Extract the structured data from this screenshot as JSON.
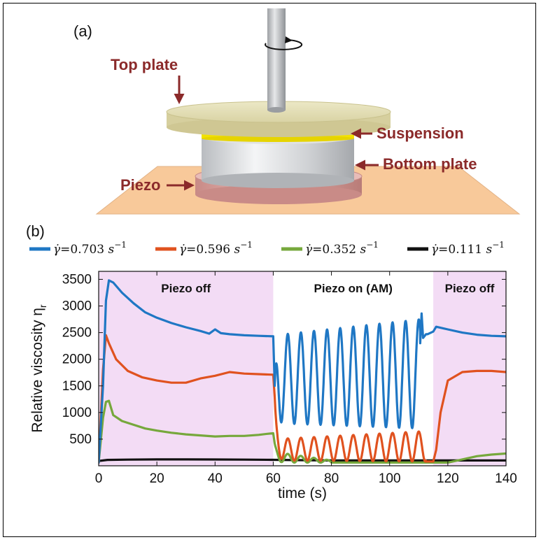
{
  "panel_a": {
    "label": "(a)",
    "callouts": {
      "top_plate": "Top plate",
      "suspension": "Suspension",
      "bottom_plate": "Bottom plate",
      "piezo": "Piezo"
    }
  },
  "panel_b": {
    "label": "(b)"
  },
  "colors": {
    "series": [
      "#1f77c4",
      "#e0521f",
      "#76a83c",
      "#111111"
    ],
    "shade": "#f3dcf5",
    "callout": "#8b2a2a"
  },
  "chart_data": {
    "type": "line",
    "xlabel": "time (s)",
    "ylabel": "Relative viscosity η",
    "ylabel_sub": "r",
    "xlim": [
      0,
      140
    ],
    "ylim": [
      0,
      3650
    ],
    "xticks": [
      0,
      20,
      40,
      60,
      80,
      100,
      120,
      140
    ],
    "yticks": [
      500,
      1000,
      1500,
      2000,
      2500,
      3000,
      3500
    ],
    "grid": false,
    "legend_position": "top",
    "regions": [
      {
        "label": "Piezo off",
        "x_start": 0,
        "x_end": 60,
        "shaded": true
      },
      {
        "label": "Piezo on (AM)",
        "x_start": 60,
        "x_end": 115,
        "shaded": false
      },
      {
        "label": "Piezo off",
        "x_start": 115,
        "x_end": 140,
        "shaded": true
      }
    ],
    "series": [
      {
        "name": "γ̇=0.703 s⁻¹",
        "name_parts": {
          "var": "γ̇",
          "val": "=0.703",
          "unit": "s",
          "exp": "−1"
        },
        "off1": {
          "x": [
            0,
            1.5,
            2.5,
            3.5,
            5,
            8,
            12,
            16,
            20,
            25,
            30,
            35,
            38,
            40,
            42,
            45,
            50,
            55,
            60
          ],
          "y": [
            60,
            1500,
            3100,
            3480,
            3440,
            3250,
            3050,
            2880,
            2780,
            2680,
            2600,
            2530,
            2480,
            2560,
            2490,
            2470,
            2450,
            2440,
            2430
          ]
        },
        "am": {
          "x_start": 60.5,
          "x_end": 110.5,
          "period": 4.5,
          "y_start": 1500,
          "peak": [
            2450,
            2750
          ],
          "trough": [
            800,
            700
          ]
        },
        "spike": {
          "x": [
            110.5,
            111.0,
            111.5,
            112.5
          ],
          "y": [
            2300,
            2860,
            2400,
            2470
          ]
        },
        "off2": {
          "x": [
            113,
            115,
            116,
            120,
            125,
            130,
            135,
            140
          ],
          "y": [
            2470,
            2520,
            2610,
            2560,
            2500,
            2460,
            2440,
            2430
          ]
        }
      },
      {
        "name": "γ̇=0.596 s⁻¹",
        "name_parts": {
          "var": "γ̇",
          "val": "=0.596",
          "unit": "s",
          "exp": "−1"
        },
        "off1": {
          "x": [
            0,
            1.5,
            2.5,
            3.5,
            6,
            10,
            15,
            20,
            25,
            30,
            35,
            40,
            45,
            50,
            55,
            60
          ],
          "y": [
            60,
            1800,
            2450,
            2300,
            2000,
            1780,
            1660,
            1600,
            1560,
            1560,
            1640,
            1690,
            1760,
            1730,
            1720,
            1710
          ]
        },
        "am": {
          "x_start": 60.5,
          "x_end": 112.5,
          "period": 4.5,
          "y_start": 1300,
          "peak": [
            500,
            650
          ],
          "trough": [
            100,
            80
          ]
        },
        "off2": {
          "x": [
            112.5,
            115,
            116,
            117.5,
            120,
            125,
            130,
            135,
            140
          ],
          "y": [
            80,
            80,
            300,
            1000,
            1600,
            1760,
            1780,
            1780,
            1760
          ]
        }
      },
      {
        "name": "γ̇=0.352 s⁻¹",
        "name_parts": {
          "var": "γ̇",
          "val": "=0.352",
          "unit": "s",
          "exp": "−1"
        },
        "off1": {
          "x": [
            0,
            1.5,
            2.5,
            3.5,
            5,
            8,
            12,
            16,
            20,
            25,
            30,
            35,
            40,
            45,
            50,
            55,
            58,
            60
          ],
          "y": [
            60,
            900,
            1200,
            1220,
            950,
            840,
            770,
            700,
            660,
            620,
            590,
            570,
            550,
            560,
            560,
            580,
            600,
            610
          ]
        },
        "am": {
          "x_start": 60.5,
          "x_end": 80,
          "period": 4.5,
          "y_start": 420,
          "peak": [
            260,
            100
          ],
          "trough": [
            60,
            60
          ]
        },
        "off2": {
          "x": [
            80,
            90,
            100,
            110,
            120,
            125,
            130,
            135,
            140
          ],
          "y": [
            60,
            60,
            60,
            60,
            60,
            120,
            180,
            210,
            230
          ]
        }
      },
      {
        "name": "γ̇=0.111 s⁻¹",
        "name_parts": {
          "var": "γ̇",
          "val": "=0.111",
          "unit": "s",
          "exp": "−1"
        },
        "off1": {
          "x": [
            0,
            3,
            10,
            20,
            30,
            40,
            50,
            60,
            70,
            80,
            90,
            100,
            110,
            120,
            130,
            140
          ],
          "y": [
            90,
            110,
            115,
            120,
            120,
            118,
            115,
            112,
            105,
            100,
            100,
            100,
            100,
            100,
            100,
            100
          ]
        }
      }
    ]
  }
}
